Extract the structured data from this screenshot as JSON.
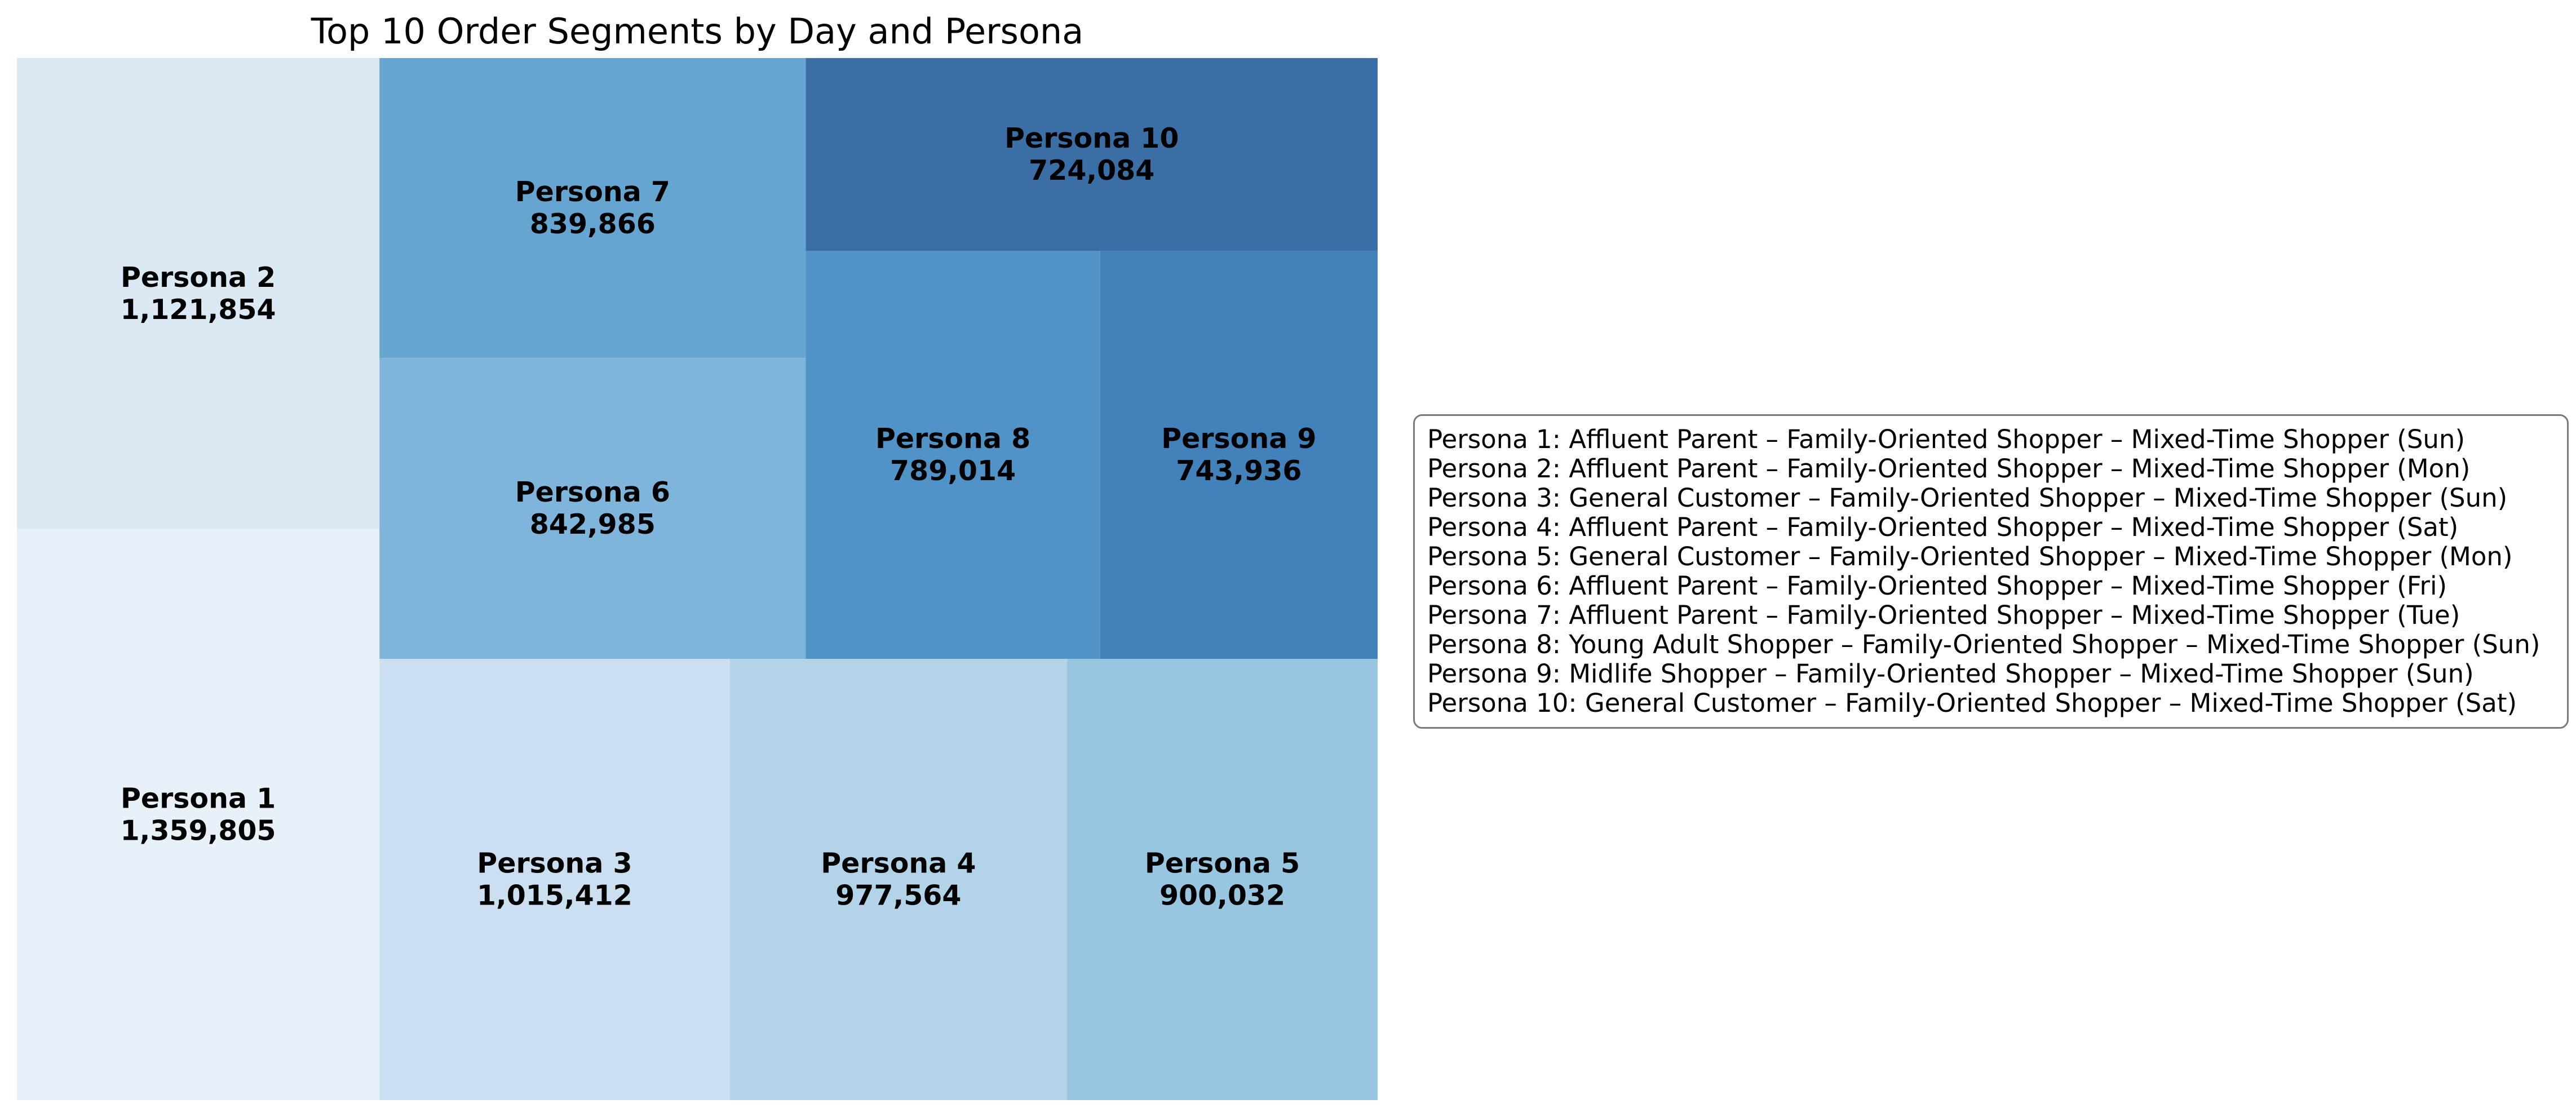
{
  "chart_data": {
    "type": "treemap",
    "title": "Top 10 Order Segments by Day and Persona",
    "items": [
      {
        "label": "Persona 1",
        "value": 1359805,
        "value_text": "1,359,805",
        "color": "#e8f1fa"
      },
      {
        "label": "Persona 2",
        "value": 1121854,
        "value_text": "1,121,854",
        "color": "#dbe9f5"
      },
      {
        "label": "Persona 3",
        "value": 1015412,
        "value_text": "1,015,412",
        "color": "#cbdff0"
      },
      {
        "label": "Persona 4",
        "value": 977564,
        "value_text": "977,564",
        "color": "#b3d4e8"
      },
      {
        "label": "Persona 5",
        "value": 900032,
        "value_text": "900,032",
        "color": "#98c5e0"
      },
      {
        "label": "Persona 6",
        "value": 842985,
        "value_text": "842,985",
        "color": "#7fb5da"
      },
      {
        "label": "Persona 7",
        "value": 839866,
        "value_text": "839,866",
        "color": "#66a5d0"
      },
      {
        "label": "Persona 8",
        "value": 789014,
        "value_text": "789,014",
        "color": "#5193c7"
      },
      {
        "label": "Persona 9",
        "value": 743936,
        "value_text": "743,936",
        "color": "#4281ba"
      },
      {
        "label": "Persona 10",
        "value": 724084,
        "value_text": "724,084",
        "color": "#3a6ea4"
      }
    ],
    "legend": {
      "placement": "right",
      "entries": [
        "Persona 1: Affluent Parent – Family-Oriented Shopper – Mixed-Time Shopper (Sun)",
        "Persona 2: Affluent Parent – Family-Oriented Shopper – Mixed-Time Shopper (Mon)",
        "Persona 3: General Customer – Family-Oriented Shopper – Mixed-Time Shopper (Sun)",
        "Persona 4: Affluent Parent – Family-Oriented Shopper – Mixed-Time Shopper (Sat)",
        "Persona 5: General Customer – Family-Oriented Shopper – Mixed-Time Shopper (Mon)",
        "Persona 6: Affluent Parent – Family-Oriented Shopper – Mixed-Time Shopper (Fri)",
        "Persona 7: Affluent Parent – Family-Oriented Shopper – Mixed-Time Shopper (Tue)",
        "Persona 8: Young Adult Shopper – Family-Oriented Shopper – Mixed-Time Shopper (Sun)",
        "Persona 9: Midlife Shopper – Family-Oriented Shopper – Mixed-Time Shopper (Sun)",
        "Persona 10: General Customer – Family-Oriented Shopper – Mixed-Time Shopper (Sat)"
      ]
    },
    "axes": "off",
    "grid": false
  }
}
